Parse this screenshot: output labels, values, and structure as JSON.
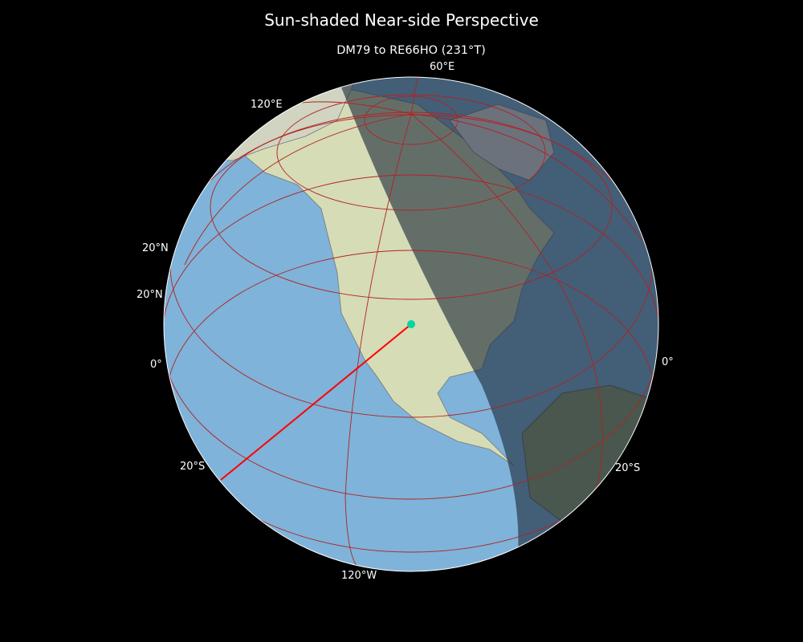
{
  "title": "Sun-shaded Near-side Perspective",
  "subtitle": "DM79 to RE66HO (231°T)",
  "graticule_labels": {
    "lon_60e": "60°E",
    "lon_120e": "120°E",
    "lon_120w": "120°W",
    "lon_0": "0°",
    "lat_20n_a": "20°N",
    "lat_20n_b": "20°N",
    "lat_0": "0°",
    "lat_20s_left": "20°S",
    "lat_20s_right": "20°S"
  },
  "path": {
    "from": "DM79",
    "to": "RE66HO",
    "bearing": "231°T",
    "color": "#ff0000"
  },
  "colors": {
    "ocean": "#7fb3d9",
    "land": "#cfd8b0",
    "night": "#1e2a3a",
    "graticule": "#b22222",
    "marker": "#00d4a0"
  }
}
